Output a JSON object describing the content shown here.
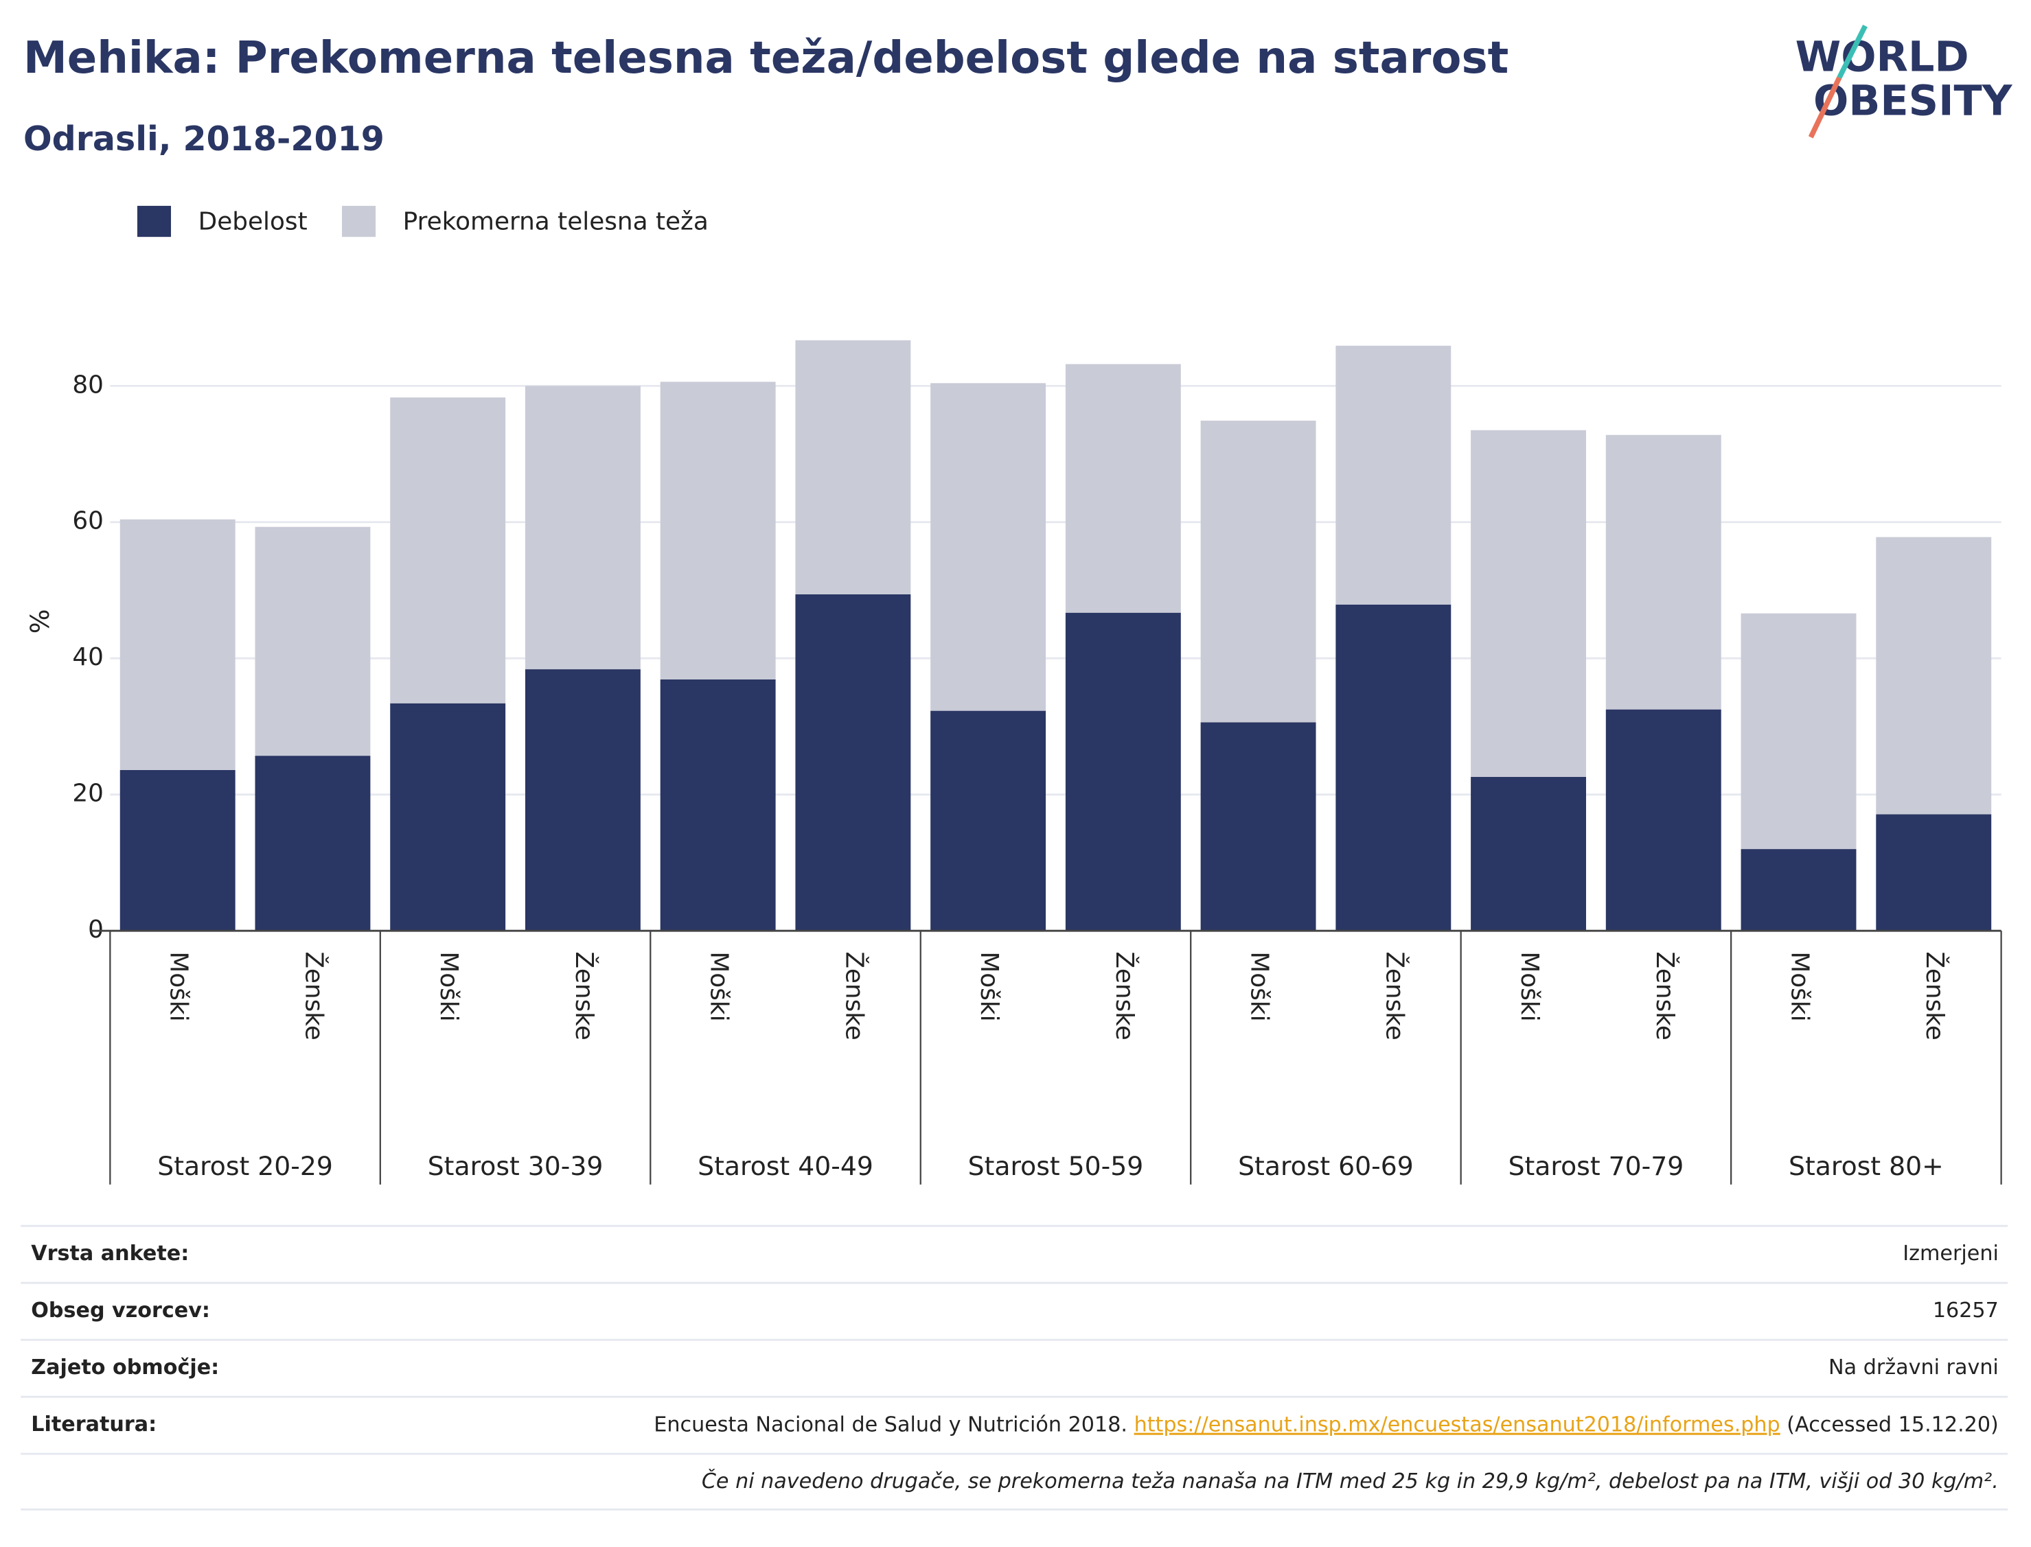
{
  "chart_data": {
    "type": "bar",
    "stacked": true,
    "title": "Mehika: Prekomerna telesna teža/debelost glede na starost",
    "subtitle": "Odrasli, 2018-2019",
    "logo": [
      "WORLD",
      "OBESITY"
    ],
    "ylabel": "%",
    "groups": [
      "Starost 20-29",
      "Starost 30-39",
      "Starost 40-49",
      "Starost 50-59",
      "Starost 60-69",
      "Starost 70-79",
      "Starost 80+"
    ],
    "categories": [
      "Moški",
      "Ženske",
      "Moški",
      "Ženske",
      "Moški",
      "Ženske",
      "Moški",
      "Ženske",
      "Moški",
      "Ženske",
      "Moški",
      "Ženske",
      "Moški",
      "Ženske"
    ],
    "series": [
      {
        "name": "Debelost",
        "color": "#2a3663",
        "values": [
          23.6,
          25.7,
          33.4,
          38.4,
          36.9,
          49.4,
          32.3,
          46.7,
          30.6,
          47.9,
          22.6,
          32.5,
          12.0,
          17.1
        ]
      },
      {
        "name": "Prekomerna telesna teža",
        "color": "#c9cbd7",
        "values": [
          36.8,
          33.6,
          44.9,
          41.6,
          43.7,
          37.3,
          48.1,
          36.5,
          44.3,
          38.0,
          50.9,
          40.3,
          34.6,
          40.7
        ]
      }
    ],
    "ylim": [
      0,
      88
    ],
    "yticks": [
      0,
      20,
      40,
      60,
      80
    ],
    "grid": true
  },
  "table": {
    "rows": [
      [
        "Vrsta ankete:",
        "Izmerjeni"
      ],
      [
        "Obseg vzorcev:",
        "16257"
      ],
      [
        "Zajeto območje:",
        "Na državni ravni"
      ]
    ],
    "literature": {
      "label": "Literatura:",
      "text": "Encuesta Nacional de Salud y Nutrición 2018. ",
      "link": "https://ensanut.insp.mx/encuestas/ensanut2018/informes.php",
      "accessed": " (Accessed 15.12.20)"
    },
    "footnote": "Če ni navedeno drugače, se prekomerna teža nanaša na ITM med 25 kg in 29,9 kg/m², debelost pa na ITM, višji od 30 kg/m²."
  }
}
